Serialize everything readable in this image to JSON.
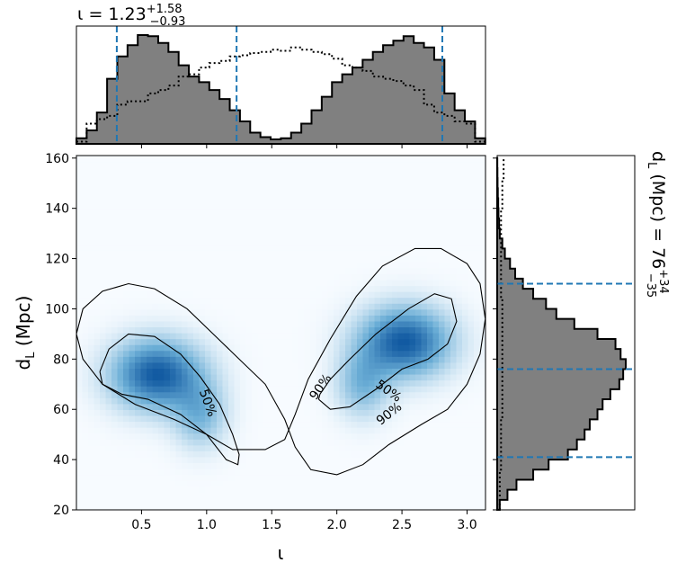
{
  "chart_data": [
    {
      "type": "heatmap",
      "panel": "joint",
      "xlabel": "ι",
      "ylabel": "d",
      "ylabel_sub": "L",
      "ylabel_unit": "(Mpc)",
      "xlim": [
        0.0,
        3.1416
      ],
      "ylim": [
        20,
        161
      ],
      "xticks": [
        "0.5",
        "1.0",
        "1.5",
        "2.0",
        "2.5",
        "3.0"
      ],
      "xtick_values": [
        0.5,
        1.0,
        1.5,
        2.0,
        2.5,
        3.0
      ],
      "yticks": [
        "20",
        "40",
        "60",
        "80",
        "100",
        "120",
        "140",
        "160"
      ],
      "ytick_values": [
        20,
        40,
        60,
        80,
        100,
        120,
        140,
        160
      ],
      "colormap": "Blues",
      "density_peaks": [
        {
          "x": 0.62,
          "y": 74,
          "sx": 0.24,
          "sy": 9.5,
          "weight": 1.0
        },
        {
          "x": 0.95,
          "y": 58,
          "sx": 0.14,
          "sy": 9.0,
          "weight": 0.45
        },
        {
          "x": 2.52,
          "y": 87,
          "sx": 0.24,
          "sy": 9.5,
          "weight": 1.0
        },
        {
          "x": 2.2,
          "y": 70,
          "sx": 0.14,
          "sy": 9.0,
          "weight": 0.45
        }
      ],
      "contours": [
        {
          "label": "50%",
          "x": [
            0.18,
            0.25,
            0.4,
            0.6,
            0.8,
            0.95,
            1.1,
            1.2,
            1.25,
            1.24,
            1.15,
            1.0,
            0.8,
            0.55,
            0.35,
            0.2,
            0.18
          ],
          "y": [
            75,
            84,
            90,
            89,
            82,
            73,
            62,
            50,
            42,
            38,
            40,
            50,
            58,
            64,
            66,
            70,
            75
          ]
        },
        {
          "label": "50%",
          "x": [
            1.86,
            1.95,
            2.1,
            2.3,
            2.5,
            2.7,
            2.85,
            2.92,
            2.88,
            2.75,
            2.55,
            2.3,
            2.1,
            1.95,
            1.87,
            1.86
          ],
          "y": [
            64,
            60,
            61,
            68,
            76,
            80,
            86,
            95,
            104,
            106,
            100,
            90,
            80,
            72,
            66,
            64
          ]
        },
        {
          "label": "90%",
          "x": [
            0.0,
            0.05,
            0.2,
            0.4,
            0.6,
            0.85,
            1.05,
            1.25,
            1.45,
            1.6,
            1.68,
            1.8,
            2.0,
            2.2,
            2.4,
            2.65,
            2.85,
            3.0,
            3.1,
            3.14,
            3.1,
            3.0,
            2.8,
            2.6,
            2.35,
            2.15,
            1.95,
            1.78,
            1.68,
            1.6,
            1.45,
            1.2,
            1.0,
            0.75,
            0.45,
            0.2,
            0.05,
            0.0
          ],
          "y": [
            90,
            100,
            107,
            110,
            108,
            100,
            90,
            80,
            70,
            56,
            45,
            36,
            34,
            38,
            46,
            54,
            60,
            70,
            82,
            96,
            110,
            118,
            124,
            124,
            117,
            105,
            88,
            72,
            58,
            48,
            44,
            44,
            50,
            56,
            62,
            70,
            80,
            90
          ]
        }
      ]
    },
    {
      "type": "histogram",
      "panel": "top-marginal",
      "title_value": "ι = 1.23",
      "title_upper": "+1.58",
      "title_lower": "−0.93",
      "bin_edges": [
        0.0,
        0.0785,
        0.157,
        0.2355,
        0.314,
        0.3925,
        0.471,
        0.5495,
        0.628,
        0.7065,
        0.785,
        0.8635,
        0.942,
        1.0205,
        1.099,
        1.1775,
        1.256,
        1.3345,
        1.413,
        1.4915,
        1.57,
        1.6485,
        1.727,
        1.8055,
        1.884,
        1.9625,
        2.041,
        2.1195,
        2.198,
        2.2765,
        2.355,
        2.4335,
        2.512,
        2.5905,
        2.669,
        2.7475,
        2.826,
        2.9045,
        2.983,
        3.0615,
        3.14
      ],
      "filled_counts": [
        0.05,
        0.12,
        0.28,
        0.58,
        0.78,
        0.88,
        0.97,
        0.96,
        0.9,
        0.82,
        0.7,
        0.6,
        0.55,
        0.48,
        0.4,
        0.3,
        0.2,
        0.1,
        0.06,
        0.04,
        0.05,
        0.1,
        0.18,
        0.3,
        0.42,
        0.55,
        0.62,
        0.68,
        0.75,
        0.82,
        0.88,
        0.92,
        0.96,
        0.9,
        0.86,
        0.75,
        0.45,
        0.3,
        0.2,
        0.05
      ],
      "dotted_counts": [
        0.02,
        0.18,
        0.22,
        0.25,
        0.35,
        0.38,
        0.38,
        0.45,
        0.48,
        0.52,
        0.6,
        0.62,
        0.68,
        0.72,
        0.74,
        0.78,
        0.79,
        0.81,
        0.82,
        0.84,
        0.83,
        0.86,
        0.84,
        0.82,
        0.8,
        0.76,
        0.7,
        0.68,
        0.65,
        0.6,
        0.58,
        0.56,
        0.52,
        0.48,
        0.35,
        0.28,
        0.25,
        0.2,
        0.18,
        0.02
      ],
      "quantile_lines": [
        0.31,
        1.23,
        2.81
      ]
    },
    {
      "type": "histogram",
      "panel": "right-marginal",
      "title_value": "d",
      "title_sub": "L",
      "title_mid": " (Mpc) = 76",
      "title_upper": "+34",
      "title_lower": "−35",
      "bin_edges": [
        20,
        24,
        28,
        32,
        36,
        40,
        44,
        48,
        52,
        56,
        60,
        64,
        68,
        72,
        76,
        80,
        84,
        88,
        92,
        96,
        100,
        104,
        108,
        112,
        116,
        120,
        124,
        128,
        132,
        136,
        140,
        144,
        148,
        152,
        156,
        160
      ],
      "filled_counts": [
        0.02,
        0.08,
        0.15,
        0.28,
        0.4,
        0.55,
        0.62,
        0.68,
        0.72,
        0.78,
        0.82,
        0.88,
        0.95,
        0.98,
        1.0,
        0.96,
        0.92,
        0.78,
        0.6,
        0.46,
        0.38,
        0.28,
        0.2,
        0.14,
        0.1,
        0.06,
        0.04,
        0.02,
        0.015,
        0.01,
        0.008,
        0.005,
        0.003,
        0.002,
        0.001
      ],
      "dotted_counts": [
        0.02,
        0.02,
        0.02,
        0.02,
        0.03,
        0.03,
        0.03,
        0.03,
        0.03,
        0.04,
        0.04,
        0.04,
        0.04,
        0.04,
        0.04,
        0.04,
        0.04,
        0.04,
        0.04,
        0.04,
        0.04,
        0.03,
        0.03,
        0.03,
        0.03,
        0.03,
        0.03,
        0.03,
        0.03,
        0.03,
        0.04,
        0.04,
        0.04,
        0.05,
        0.05
      ],
      "quantile_lines": [
        41,
        76,
        110
      ]
    }
  ],
  "colors": {
    "hist_fill": "#808080",
    "hist_edge": "#000000",
    "quantile": "#1f77b4",
    "contour": "#000000",
    "heat_low": "#f7fbff",
    "heat_high": "#08306b"
  }
}
